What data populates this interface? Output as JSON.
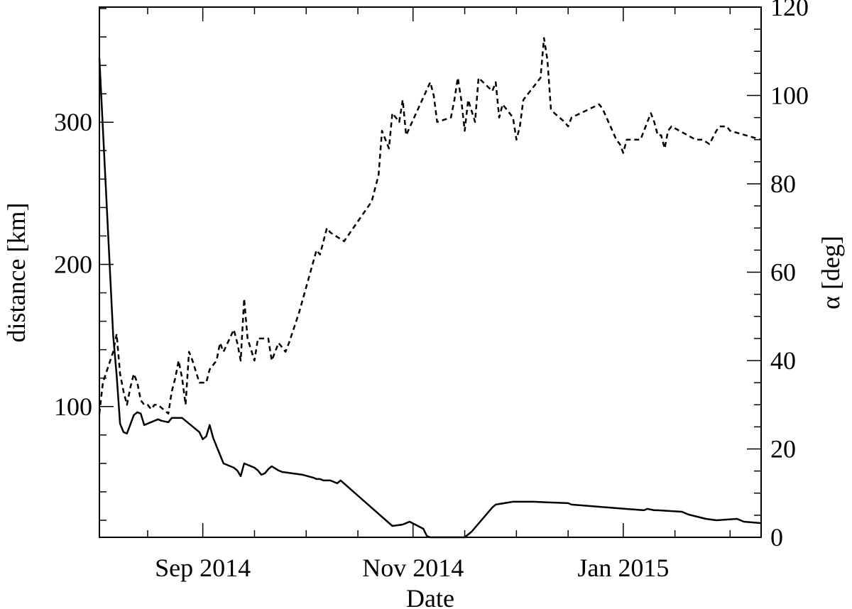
{
  "chart_data": {
    "type": "line",
    "title": "",
    "xlabel": "Date",
    "ylabel_left": "distance [km]",
    "ylabel_right": "α [deg]",
    "x_ticks": [
      {
        "label": "Sep 2014",
        "date": "2014-09-01"
      },
      {
        "label": "Nov 2014",
        "date": "2014-11-01"
      },
      {
        "label": "Jan 2015",
        "date": "2015-01-01"
      }
    ],
    "xlim": [
      "2014-08-02",
      "2015-02-10"
    ],
    "ylim_left": [
      8,
      381
    ],
    "ylim_right": [
      0,
      120
    ],
    "y_ticks_left": [
      100,
      200,
      300
    ],
    "y_ticks_right": [
      0,
      20,
      40,
      60,
      80,
      100,
      120
    ],
    "grid": false,
    "legend": "none",
    "series": [
      {
        "axis": "left",
        "style": "solid",
        "x": [
          "2014-08-02",
          "2014-08-06",
          "2014-08-07",
          "2014-08-08",
          "2014-08-09",
          "2014-08-10",
          "2014-08-12",
          "2014-08-13",
          "2014-08-14",
          "2014-08-15",
          "2014-08-19",
          "2014-08-20",
          "2014-08-22",
          "2014-08-23",
          "2014-08-24",
          "2014-08-26",
          "2014-08-31",
          "2014-09-01",
          "2014-09-02",
          "2014-09-03",
          "2014-09-04",
          "2014-09-05",
          "2014-09-06",
          "2014-09-07",
          "2014-09-10",
          "2014-09-11",
          "2014-09-12",
          "2014-09-13",
          "2014-09-16",
          "2014-09-17",
          "2014-09-18",
          "2014-09-19",
          "2014-09-20",
          "2014-09-21",
          "2014-09-23",
          "2014-09-24",
          "2014-09-27",
          "2014-09-30",
          "2014-10-03",
          "2014-10-04",
          "2014-10-05",
          "2014-10-06",
          "2014-10-07",
          "2014-10-08",
          "2014-10-09",
          "2014-10-10",
          "2014-10-11",
          "2014-10-26",
          "2014-10-29",
          "2014-10-30",
          "2014-10-31",
          "2014-11-04",
          "2014-11-05",
          "2014-11-06",
          "2014-11-07",
          "2014-11-08",
          "2014-11-11",
          "2014-11-12",
          "2014-11-13",
          "2014-11-14",
          "2014-11-15",
          "2014-11-16",
          "2014-11-18",
          "2014-11-24",
          "2014-11-25",
          "2014-11-30",
          "2014-12-01",
          "2014-12-02",
          "2014-12-03",
          "2014-12-04",
          "2014-12-06",
          "2014-12-16",
          "2014-12-17",
          "2015-01-07",
          "2015-01-08",
          "2015-01-10",
          "2015-01-11",
          "2015-01-18",
          "2015-01-19",
          "2015-01-20",
          "2015-01-25",
          "2015-01-28",
          "2015-02-03",
          "2015-02-05",
          "2015-02-10"
        ],
        "y": [
          345,
          150,
          122,
          88,
          82,
          81,
          94,
          96,
          95,
          87,
          91,
          90,
          89,
          92,
          92,
          92,
          82,
          77,
          79,
          87,
          78,
          72,
          66,
          60,
          57,
          55,
          51,
          60,
          57,
          55,
          52,
          53,
          56,
          58,
          55,
          54,
          53,
          52,
          50,
          49,
          49,
          48,
          48,
          48,
          47,
          46,
          48,
          16,
          17,
          18,
          19,
          14,
          9,
          8,
          8,
          8,
          8,
          8,
          8,
          8,
          8,
          8,
          12,
          29,
          31,
          33,
          33,
          33,
          33,
          33,
          33,
          32,
          31,
          27,
          28,
          27,
          27,
          26,
          25,
          24,
          21,
          20,
          21,
          19,
          18
        ]
      },
      {
        "axis": "right",
        "style": "dashed",
        "x": [
          "2014-08-02",
          "2014-08-03",
          "2014-08-06",
          "2014-08-07",
          "2014-08-08",
          "2014-08-09",
          "2014-08-10",
          "2014-08-11",
          "2014-08-12",
          "2014-08-13",
          "2014-08-14",
          "2014-08-15",
          "2014-08-16",
          "2014-08-17",
          "2014-08-18",
          "2014-08-19",
          "2014-08-22",
          "2014-08-23",
          "2014-08-24",
          "2014-08-25",
          "2014-08-26",
          "2014-08-27",
          "2014-08-28",
          "2014-08-29",
          "2014-08-31",
          "2014-09-02",
          "2014-09-03",
          "2014-09-04",
          "2014-09-05",
          "2014-09-06",
          "2014-09-07",
          "2014-09-10",
          "2014-09-11",
          "2014-09-12",
          "2014-09-13",
          "2014-09-14",
          "2014-09-16",
          "2014-09-17",
          "2014-09-20",
          "2014-09-21",
          "2014-09-23",
          "2014-09-24",
          "2014-09-25",
          "2014-09-26",
          "2014-09-29",
          "2014-10-04",
          "2014-10-05",
          "2014-10-07",
          "2014-10-08",
          "2014-10-12",
          "2014-10-20",
          "2014-10-22",
          "2014-10-23",
          "2014-10-25",
          "2014-10-26",
          "2014-10-28",
          "2014-10-29",
          "2014-10-30",
          "2014-11-06",
          "2014-11-07",
          "2014-11-08",
          "2014-11-12",
          "2014-11-13",
          "2014-11-14",
          "2014-11-15",
          "2014-11-16",
          "2014-11-17",
          "2014-11-19",
          "2014-11-20",
          "2014-11-24",
          "2014-11-25",
          "2014-11-26",
          "2014-11-27",
          "2014-11-30",
          "2014-12-01",
          "2014-12-02",
          "2014-12-03",
          "2014-12-08",
          "2014-12-09",
          "2014-12-10",
          "2014-12-11",
          "2014-12-12",
          "2014-12-15",
          "2014-12-16",
          "2014-12-17",
          "2014-12-25",
          "2014-12-26",
          "2014-12-30",
          "2014-12-31",
          "2015-01-01",
          "2015-01-02",
          "2015-01-06",
          "2015-01-08",
          "2015-01-09",
          "2015-01-10",
          "2015-01-11",
          "2015-01-12",
          "2015-01-13",
          "2015-01-14",
          "2015-01-15",
          "2015-01-22",
          "2015-01-24",
          "2015-01-26",
          "2015-01-28",
          "2015-01-29",
          "2015-01-30",
          "2015-01-31",
          "2015-02-01",
          "2015-02-10"
        ],
        "y": [
          28,
          35,
          42,
          46,
          37,
          33,
          30,
          34,
          37,
          35,
          31,
          30,
          30,
          29,
          30,
          30,
          28,
          33,
          36,
          40,
          36,
          30,
          42,
          40,
          35,
          35,
          38,
          39,
          40,
          44,
          42,
          47,
          44,
          40,
          54,
          45,
          40,
          45,
          45,
          40,
          44,
          43,
          42,
          44,
          51,
          65,
          64,
          70,
          69,
          67,
          76,
          82,
          92,
          88,
          96,
          94,
          99,
          91,
          103,
          100,
          94,
          95,
          99,
          104,
          99,
          92,
          99,
          94,
          104,
          101,
          103,
          95,
          98,
          95,
          90,
          93,
          99,
          104,
          113,
          108,
          97,
          96,
          94,
          93,
          95,
          98,
          97,
          90,
          89,
          87,
          90,
          90,
          94,
          96,
          94,
          91,
          91,
          88,
          92,
          93,
          90,
          90,
          89,
          92,
          93,
          93,
          93,
          92,
          90
        ]
      }
    ]
  }
}
